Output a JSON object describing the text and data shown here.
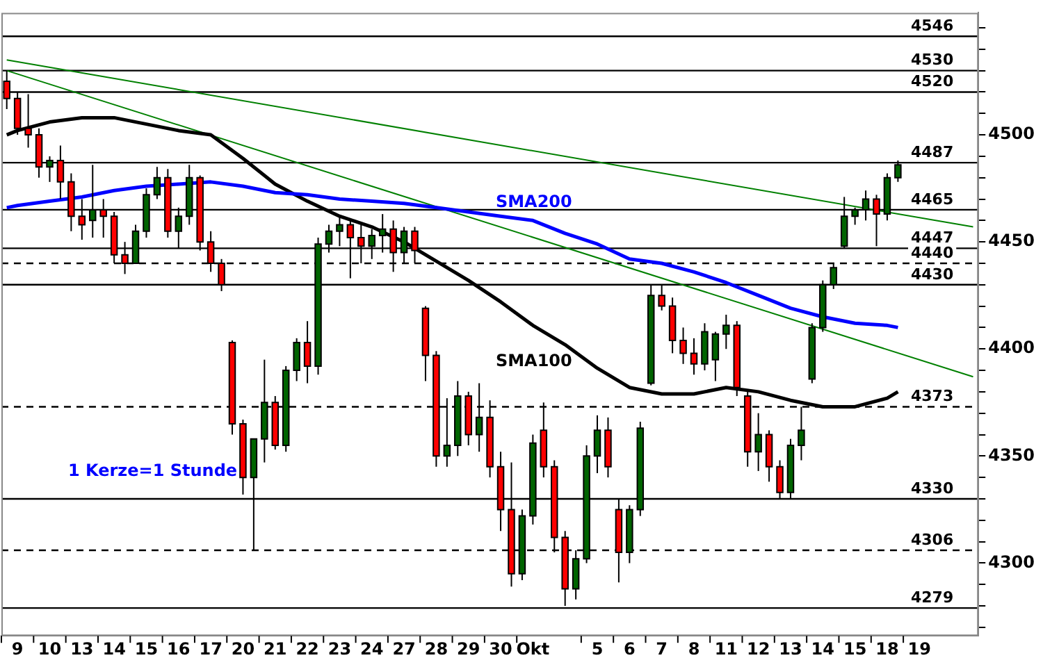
{
  "chart_data": {
    "type": "candlestick",
    "categories": [
      null,
      "9",
      null,
      null,
      "10",
      null,
      null,
      "13",
      null,
      null,
      "14",
      null,
      null,
      "15",
      null,
      null,
      "16",
      null,
      null,
      "17",
      null,
      null,
      "20",
      null,
      null,
      "21",
      null,
      null,
      "22",
      null,
      null,
      "23",
      null,
      null,
      "24",
      null,
      null,
      "27",
      null,
      null,
      "28",
      null,
      null,
      "29",
      null,
      null,
      "30",
      null,
      null,
      "Okt",
      null,
      null,
      null,
      null,
      null,
      "5",
      null,
      null,
      "6",
      null,
      null,
      "7",
      null,
      null,
      "8",
      null,
      null,
      "11",
      null,
      null,
      "12",
      null,
      null,
      "13",
      null,
      null,
      "14",
      null,
      null,
      "15",
      null,
      null,
      "18",
      null,
      null,
      "19",
      null,
      null,
      null,
      null,
      null
    ],
    "ohlc": [
      [
        4525,
        4530,
        4512,
        4517
      ],
      [
        4517,
        4520,
        4500,
        4503
      ],
      [
        4503,
        4519,
        4494,
        4500
      ],
      [
        4500,
        4503,
        4480,
        4485
      ],
      [
        4485,
        4490,
        4478,
        4488
      ],
      [
        4488,
        4495,
        4470,
        4478
      ],
      [
        4478,
        4482,
        4455,
        4462
      ],
      [
        4462,
        4470,
        4451,
        4458
      ],
      [
        4460,
        4486,
        4452,
        4465
      ],
      [
        4465,
        4470,
        4452,
        4462
      ],
      [
        4462,
        4464,
        4440,
        4444
      ],
      [
        4444,
        4450,
        4435,
        4440
      ],
      [
        4440,
        4458,
        4440,
        4455
      ],
      [
        4455,
        4475,
        4452,
        4472
      ],
      [
        4472,
        4485,
        4470,
        4480
      ],
      [
        4480,
        4484,
        4452,
        4455
      ],
      [
        4455,
        4466,
        4447,
        4462
      ],
      [
        4462,
        4486,
        4458,
        4480
      ],
      [
        4480,
        4481,
        4446,
        4450
      ],
      [
        4450,
        4455,
        4436,
        4440
      ],
      [
        4440,
        4442,
        4427,
        4430
      ],
      [
        4403,
        4404,
        4360,
        4365
      ],
      [
        4365,
        4367,
        4332,
        4340
      ],
      [
        4340,
        4358,
        4306,
        4358
      ],
      [
        4358,
        4395,
        4347,
        4375
      ],
      [
        4375,
        4378,
        4353,
        4355
      ],
      [
        4355,
        4392,
        4352,
        4390
      ],
      [
        4390,
        4405,
        4385,
        4403
      ],
      [
        4403,
        4413,
        4384,
        4392
      ],
      [
        4392,
        4452,
        4388,
        4449
      ],
      [
        4449,
        4458,
        4445,
        4455
      ],
      [
        4455,
        4462,
        4448,
        4458
      ],
      [
        4458,
        4460,
        4433,
        4452
      ],
      [
        4452,
        4458,
        4440,
        4448
      ],
      [
        4448,
        4456,
        4442,
        4453
      ],
      [
        4453,
        4463,
        4445,
        4456
      ],
      [
        4456,
        4460,
        4436,
        4445
      ],
      [
        4445,
        4457,
        4440,
        4455
      ],
      [
        4455,
        4457,
        4440,
        4446
      ],
      [
        4419,
        4420,
        4385,
        4397
      ],
      [
        4397,
        4399,
        4345,
        4350
      ],
      [
        4350,
        4377,
        4345,
        4355
      ],
      [
        4355,
        4385,
        4350,
        4378
      ],
      [
        4378,
        4380,
        4355,
        4360
      ],
      [
        4360,
        4384,
        4352,
        4368
      ],
      [
        4368,
        4376,
        4340,
        4345
      ],
      [
        4345,
        4352,
        4315,
        4325
      ],
      [
        4325,
        4347,
        4289,
        4295
      ],
      [
        4295,
        4325,
        4292,
        4322
      ],
      [
        4322,
        4360,
        4318,
        4356
      ],
      [
        4362,
        4375,
        4340,
        4345
      ],
      [
        4345,
        4348,
        4305,
        4312
      ],
      [
        4312,
        4315,
        4280,
        4288
      ],
      [
        4288,
        4306,
        4283,
        4302
      ],
      [
        4302,
        4355,
        4300,
        4350
      ],
      [
        4350,
        4369,
        4342,
        4362
      ],
      [
        4362,
        4368,
        4340,
        4345
      ],
      [
        4325,
        4330,
        4291,
        4305
      ],
      [
        4305,
        4327,
        4300,
        4325
      ],
      [
        4325,
        4366,
        4322,
        4363
      ],
      [
        4384,
        4430,
        4383,
        4425
      ],
      [
        4425,
        4430,
        4418,
        4420
      ],
      [
        4420,
        4424,
        4398,
        4404
      ],
      [
        4404,
        4410,
        4393,
        4398
      ],
      [
        4398,
        4405,
        4388,
        4393
      ],
      [
        4393,
        4412,
        4390,
        4408
      ],
      [
        4395,
        4408,
        4385,
        4407
      ],
      [
        4407,
        4416,
        4400,
        4411
      ],
      [
        4411,
        4413,
        4378,
        4382
      ],
      [
        4378,
        4380,
        4345,
        4352
      ],
      [
        4352,
        4370,
        4343,
        4360
      ],
      [
        4360,
        4362,
        4338,
        4345
      ],
      [
        4345,
        4348,
        4330,
        4333
      ],
      [
        4333,
        4358,
        4330,
        4355
      ],
      [
        4355,
        4373,
        4348,
        4362
      ],
      [
        4386,
        4412,
        4384,
        4410
      ],
      [
        4410,
        4432,
        4408,
        4430
      ],
      [
        4430,
        4440,
        4428,
        4438
      ],
      [
        4448,
        4471,
        4447,
        4462
      ],
      [
        4462,
        4466,
        4458,
        4465
      ],
      [
        4465,
        4474,
        4460,
        4470
      ],
      [
        4470,
        4472,
        4448,
        4463
      ],
      [
        4463,
        4482,
        4460,
        4480
      ],
      [
        4480,
        4488,
        4478,
        4486
      ],
      null,
      null,
      null,
      null,
      null,
      null,
      null
    ],
    "colors": [
      "#ff0000",
      "#ff0000",
      "#ff0000",
      "#ff0000",
      "#006400",
      "#ff0000",
      "#ff0000",
      "#ff0000",
      "#006400",
      "#ff0000",
      "#ff0000",
      "#ff0000",
      "#006400",
      "#006400",
      "#006400",
      "#ff0000",
      "#006400",
      "#006400",
      "#ff0000",
      "#ff0000",
      "#ff0000",
      "#ff0000",
      "#ff0000",
      "#006400",
      "#006400",
      "#ff0000",
      "#006400",
      "#006400",
      "#ff0000",
      "#006400",
      "#006400",
      "#006400",
      "#ff0000",
      "#ff0000",
      "#006400",
      "#006400",
      "#ff0000",
      "#006400",
      "#ff0000",
      "#ff0000",
      "#ff0000",
      "#006400",
      "#006400",
      "#ff0000",
      "#006400",
      "#ff0000",
      "#ff0000",
      "#ff0000",
      "#006400",
      "#006400",
      "#ff0000",
      "#ff0000",
      "#ff0000",
      "#006400",
      "#006400",
      "#006400",
      "#ff0000",
      "#ff0000",
      "#006400",
      "#006400",
      "#006400",
      "#ff0000",
      "#ff0000",
      "#ff0000",
      "#ff0000",
      "#006400",
      "#006400",
      "#006400",
      "#ff0000",
      "#ff0000",
      "#006400",
      "#ff0000",
      "#ff0000",
      "#006400",
      "#006400",
      "#006400",
      "#006400",
      "#006400",
      "#006400",
      "#006400",
      "#006400",
      "#ff0000",
      "#006400",
      "#006400",
      null,
      null,
      null,
      null,
      null,
      null,
      null
    ],
    "series": [
      {
        "type": "line",
        "name": "SMA200",
        "color": "#0000ff",
        "values": [
          4466,
          4467,
          null,
          null,
          4469,
          null,
          null,
          4471,
          null,
          null,
          4474,
          null,
          null,
          4476,
          null,
          null,
          4477,
          null,
          null,
          4478,
          null,
          null,
          4476,
          null,
          null,
          4473,
          null,
          null,
          4472,
          null,
          null,
          4470,
          null,
          null,
          4469,
          null,
          null,
          4468,
          null,
          null,
          4466,
          null,
          null,
          4464,
          null,
          null,
          4462,
          null,
          null,
          4460,
          null,
          null,
          4454,
          null,
          null,
          4449,
          null,
          null,
          4442,
          null,
          null,
          4440,
          null,
          null,
          4436,
          null,
          null,
          4431,
          null,
          null,
          4425,
          null,
          null,
          4419,
          null,
          null,
          4415,
          null,
          null,
          4412,
          null,
          null,
          4411,
          4410,
          null,
          null,
          null,
          null,
          null,
          null,
          null
        ]
      },
      {
        "type": "line",
        "name": "SMA100",
        "color": "#000000",
        "values": [
          4500,
          4502,
          null,
          null,
          4506,
          null,
          null,
          4508,
          null,
          null,
          4508,
          null,
          null,
          4505,
          null,
          null,
          4502,
          null,
          null,
          4500,
          null,
          null,
          4489,
          null,
          null,
          4477,
          null,
          null,
          4469,
          null,
          null,
          4462,
          null,
          null,
          4457,
          null,
          null,
          4450,
          null,
          null,
          4441,
          null,
          null,
          4432,
          null,
          null,
          4422,
          null,
          null,
          4411,
          null,
          null,
          4402,
          null,
          null,
          4391,
          null,
          null,
          4382,
          null,
          null,
          4379,
          null,
          null,
          4379,
          null,
          null,
          4382,
          null,
          null,
          4380,
          null,
          null,
          4376,
          null,
          null,
          4373,
          null,
          null,
          4373,
          null,
          null,
          4377,
          4380,
          null,
          null,
          null,
          null,
          null,
          null,
          null
        ]
      },
      {
        "type": "line",
        "color": "#008000",
        "values": [
          4535,
          null,
          null,
          null,
          null,
          null,
          null,
          null,
          null,
          null,
          null,
          null,
          null,
          null,
          null,
          null,
          null,
          null,
          null,
          null,
          null,
          null,
          null,
          null,
          null,
          null,
          null,
          null,
          null,
          null,
          null,
          null,
          null,
          null,
          null,
          null,
          null,
          null,
          null,
          null,
          null,
          null,
          null,
          null,
          null,
          null,
          null,
          null,
          null,
          null,
          null,
          null,
          null,
          null,
          null,
          null,
          null,
          null,
          null,
          null,
          null,
          null,
          null,
          null,
          null,
          null,
          null,
          null,
          null,
          null,
          null,
          null,
          null,
          null,
          null,
          null,
          null,
          null,
          null,
          null,
          null,
          null,
          null,
          null,
          null,
          null,
          null,
          null,
          null,
          null,
          4457
        ]
      },
      {
        "type": "line",
        "color": "#008000",
        "values": [
          4530,
          null,
          null,
          null,
          null,
          null,
          null,
          null,
          null,
          null,
          null,
          null,
          null,
          null,
          null,
          null,
          null,
          null,
          null,
          null,
          null,
          null,
          null,
          null,
          null,
          null,
          null,
          null,
          null,
          null,
          null,
          null,
          null,
          null,
          null,
          null,
          null,
          null,
          null,
          null,
          null,
          null,
          null,
          null,
          null,
          null,
          null,
          null,
          null,
          null,
          null,
          null,
          null,
          null,
          null,
          null,
          null,
          null,
          null,
          null,
          null,
          null,
          null,
          null,
          null,
          null,
          null,
          null,
          null,
          null,
          null,
          null,
          null,
          null,
          null,
          null,
          null,
          null,
          null,
          null,
          null,
          null,
          null,
          null,
          null,
          null,
          null,
          null,
          null,
          null,
          4387
        ]
      }
    ],
    "ylim": [
      4266,
      4557
    ],
    "yticks": [
      {
        "value": 4270,
        "label": null
      },
      {
        "value": 4280,
        "label": null
      },
      {
        "value": 4290,
        "label": null
      },
      4300,
      {
        "value": 4310,
        "label": null
      },
      {
        "value": 4320,
        "label": null
      },
      {
        "value": 4330,
        "label": null
      },
      {
        "value": 4340,
        "label": null
      },
      4350,
      {
        "value": 4360,
        "label": null
      },
      {
        "value": 4370,
        "label": null
      },
      {
        "value": 4380,
        "label": null
      },
      {
        "value": 4390,
        "label": null
      },
      4400,
      {
        "value": 4410,
        "label": null
      },
      {
        "value": 4420,
        "label": null
      },
      {
        "value": 4430,
        "label": null
      },
      {
        "value": 4440,
        "label": null
      },
      4450,
      {
        "value": 4460,
        "label": null
      },
      {
        "value": 4470,
        "label": null
      },
      {
        "value": 4480,
        "label": null
      },
      {
        "value": 4490,
        "label": null
      },
      4500,
      {
        "value": 4510,
        "label": null
      },
      {
        "value": 4520,
        "label": null
      },
      {
        "value": 4530,
        "label": null
      },
      {
        "value": 4540,
        "label": null
      },
      {
        "value": 4550,
        "label": null
      }
    ],
    "ref_lines": [
      {
        "axis": "y",
        "value": 4546,
        "label": "4546",
        "color": "#000000",
        "line_style": "solid"
      },
      {
        "axis": "y",
        "value": 4530,
        "label": "4530",
        "color": "#000000",
        "line_style": "solid"
      },
      {
        "axis": "y",
        "value": 4520,
        "label": "4520",
        "color": "#000000",
        "line_style": "solid"
      },
      {
        "axis": "y",
        "value": 4487,
        "label": "4487",
        "color": "#000000",
        "line_style": "solid"
      },
      {
        "axis": "y",
        "value": 4465,
        "label": "4465",
        "color": "#000000",
        "line_style": "solid"
      },
      {
        "axis": "y",
        "value": 4447,
        "label": "4447",
        "color": "#000000",
        "line_style": "solid"
      },
      {
        "axis": "y",
        "value": 4440,
        "label": "4440",
        "color": "#000000",
        "line_style": "dashed"
      },
      {
        "axis": "y",
        "value": 4430,
        "label": "4430",
        "color": "#000000",
        "line_style": "solid"
      },
      {
        "axis": "y",
        "value": 4373,
        "label": "4373",
        "color": "#000000",
        "line_style": "dashed"
      },
      {
        "axis": "y",
        "value": 4330,
        "label": "4330",
        "color": "#000000",
        "line_style": "solid"
      },
      {
        "axis": "y",
        "value": 4306,
        "label": "4306",
        "color": "#000000",
        "line_style": "dashed"
      },
      {
        "axis": "y",
        "value": 4279,
        "label": "4279",
        "color": "#000000",
        "line_style": "solid"
      }
    ],
    "annotations": [
      "1 Kerze=1 Stunde"
    ],
    "grid": false,
    "legend": false
  }
}
